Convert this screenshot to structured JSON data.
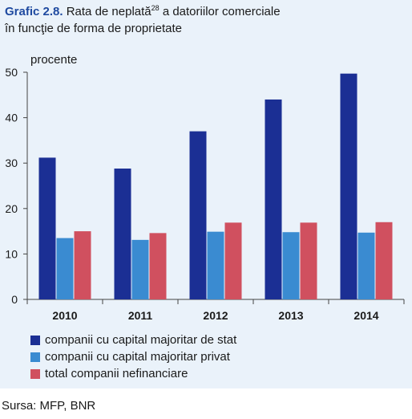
{
  "title": {
    "label": "Grafic 2.8.",
    "text_part1": "Rata de neplată",
    "footnote": "28",
    "text_part2": " a datoriilor comerciale",
    "line2": "în funcţie de forma de proprietate"
  },
  "source": "Sursa: MFP, BNR",
  "chart_data": {
    "type": "bar",
    "ylabel": "procente",
    "ylim": [
      0,
      50
    ],
    "yticks": [
      0,
      10,
      20,
      30,
      40,
      50
    ],
    "categories": [
      "2010",
      "2011",
      "2012",
      "2013",
      "2014"
    ],
    "series": [
      {
        "name": "companii cu capital majoritar de stat",
        "color": "#1b2f94",
        "values": [
          31.2,
          28.8,
          37.0,
          44.0,
          49.7
        ]
      },
      {
        "name": "companii cu capital majoritar privat",
        "color": "#3a8bd1",
        "values": [
          13.5,
          13.1,
          14.9,
          14.8,
          14.7
        ]
      },
      {
        "name": "total companii nefinanciare",
        "color": "#d0505f",
        "values": [
          15.0,
          14.6,
          16.9,
          16.9,
          17.0
        ]
      }
    ],
    "grid": false,
    "legend_position": "bottom"
  }
}
